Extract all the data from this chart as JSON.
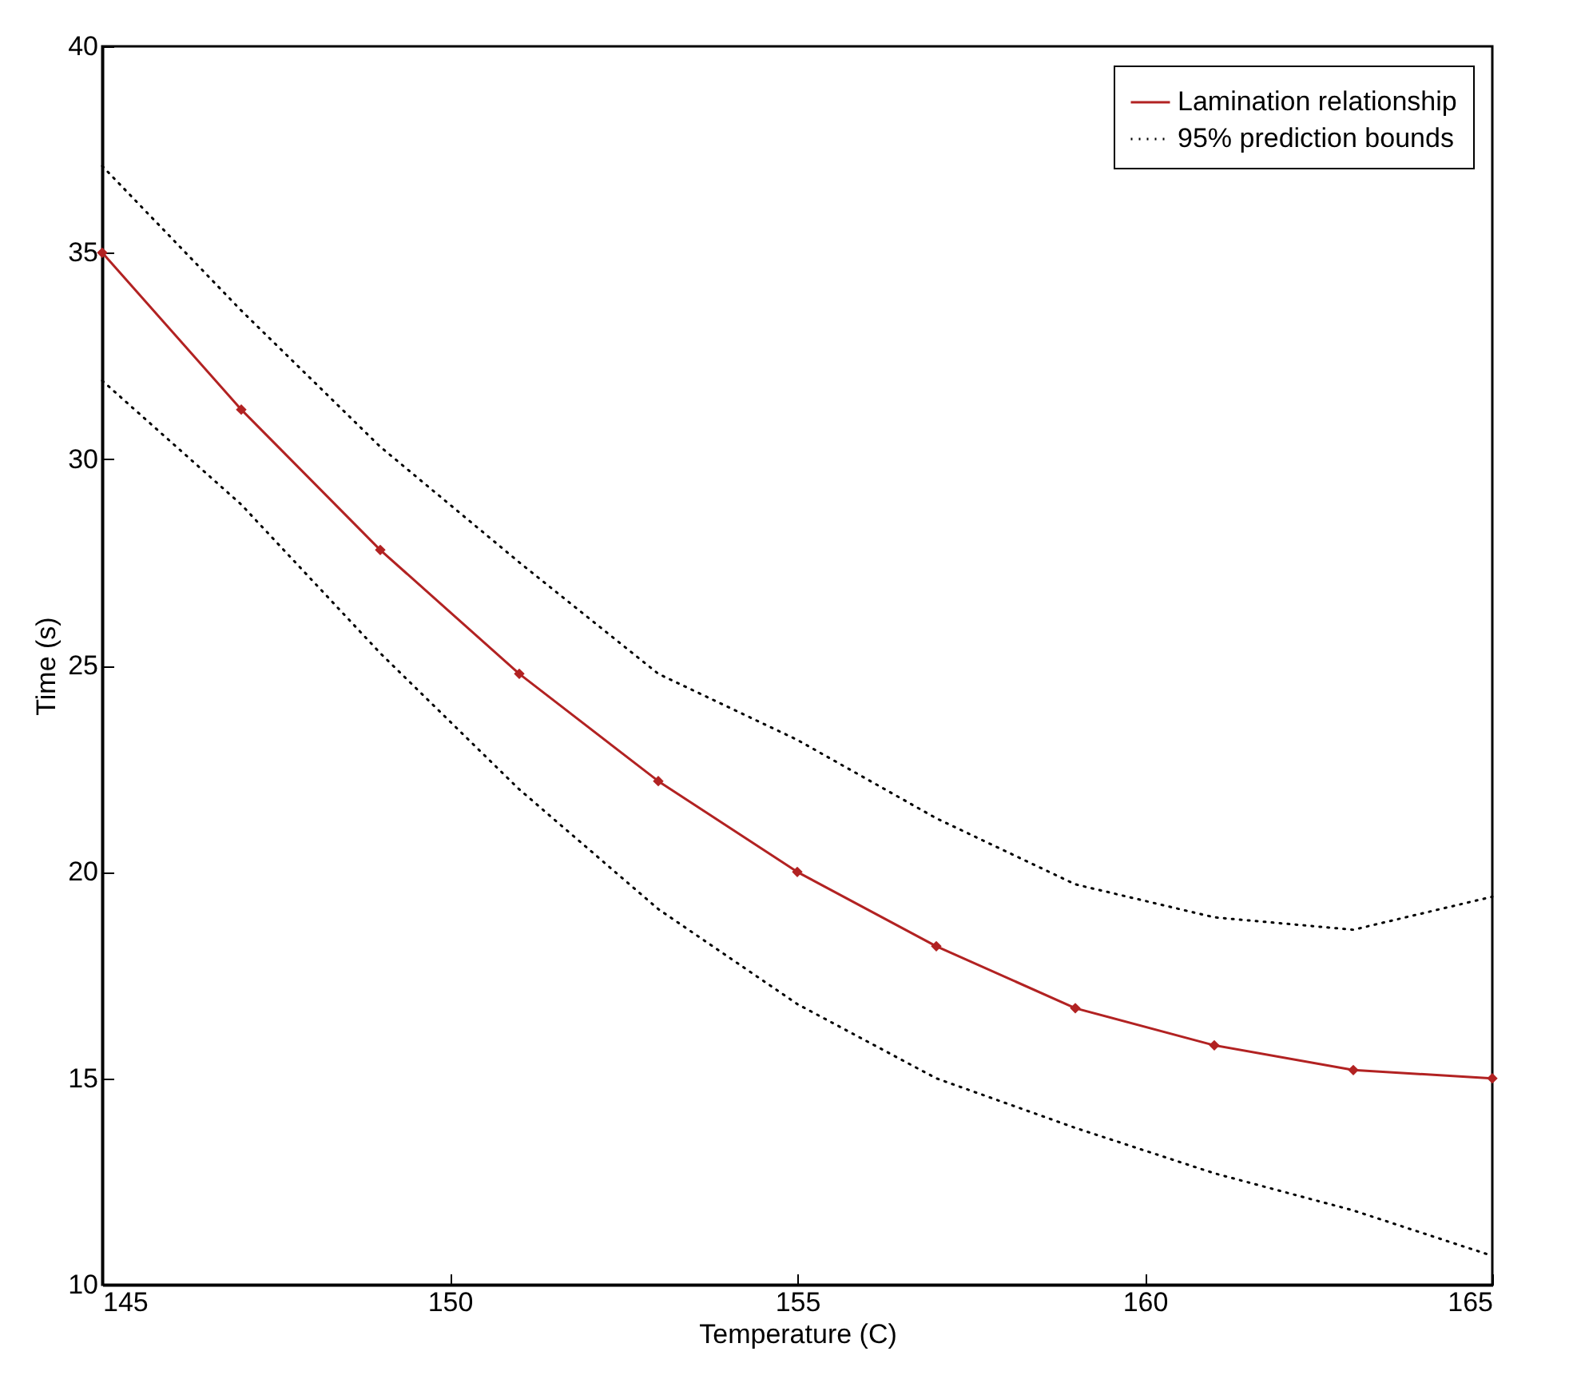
{
  "chart_data": {
    "type": "line",
    "xlabel": "Temperature (C)",
    "ylabel": "Time (s)",
    "x": [
      145,
      147,
      149,
      151,
      153,
      155,
      157,
      159,
      161,
      163,
      165
    ],
    "series": [
      {
        "name": "Lamination relationship",
        "color": "#b22222",
        "marker": "diamond",
        "line_style": "solid",
        "values": [
          35,
          31.2,
          27.8,
          24.8,
          22.2,
          20.0,
          18.2,
          16.7,
          15.8,
          15.2,
          15.0
        ]
      },
      {
        "name": "95% prediction bounds",
        "color": "#000000",
        "marker": "none",
        "line_style": "dotted",
        "values": [
          37.1,
          33.6,
          30.3,
          27.5,
          24.8,
          23.2,
          21.3,
          19.7,
          18.9,
          18.6,
          19.4
        ]
      },
      {
        "color": "#000000",
        "marker": "none",
        "line_style": "dotted",
        "values": [
          31.9,
          28.9,
          25.3,
          22.0,
          19.1,
          16.8,
          15.0,
          13.8,
          12.7,
          11.8,
          10.7
        ]
      }
    ],
    "xlim": [
      145,
      165
    ],
    "xticks": [
      145,
      150,
      155,
      160,
      165
    ],
    "ylim": [
      10,
      40
    ],
    "yticks": [
      10,
      15,
      20,
      25,
      30,
      35,
      40
    ],
    "grid": false,
    "legend": "top right"
  }
}
